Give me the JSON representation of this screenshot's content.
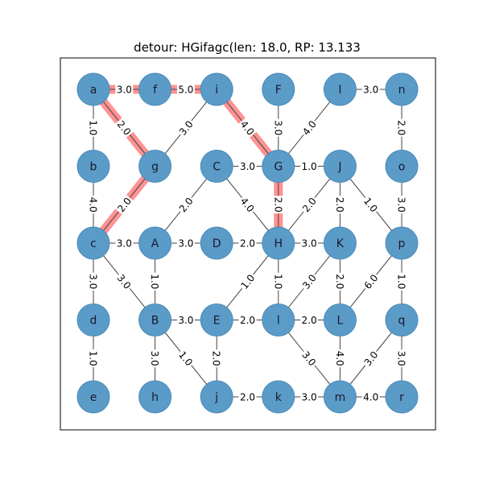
{
  "title": "detour: HGifagc(len: 18.0, RP: 13.133",
  "colors": {
    "node_fill": "#5b9bc8",
    "node_stroke": "#4a8ab8",
    "edge": "#444444",
    "path_highlight": "#ff8080",
    "label_bg": "#ffffff",
    "frame": "#000000"
  },
  "nodes": [
    {
      "id": "a",
      "col": 0,
      "row": 0
    },
    {
      "id": "f",
      "col": 1,
      "row": 0
    },
    {
      "id": "i",
      "col": 2,
      "row": 0
    },
    {
      "id": "F",
      "col": 3,
      "row": 0
    },
    {
      "id": "I",
      "col": 4,
      "row": 0
    },
    {
      "id": "n",
      "col": 5,
      "row": 0
    },
    {
      "id": "b",
      "col": 0,
      "row": 1
    },
    {
      "id": "g",
      "col": 1,
      "row": 1
    },
    {
      "id": "C",
      "col": 2,
      "row": 1
    },
    {
      "id": "G",
      "col": 3,
      "row": 1
    },
    {
      "id": "J",
      "col": 4,
      "row": 1
    },
    {
      "id": "o",
      "col": 5,
      "row": 1
    },
    {
      "id": "c",
      "col": 0,
      "row": 2
    },
    {
      "id": "A",
      "col": 1,
      "row": 2
    },
    {
      "id": "D",
      "col": 2,
      "row": 2
    },
    {
      "id": "H",
      "col": 3,
      "row": 2
    },
    {
      "id": "K",
      "col": 4,
      "row": 2
    },
    {
      "id": "p",
      "col": 5,
      "row": 2
    },
    {
      "id": "d",
      "col": 0,
      "row": 3
    },
    {
      "id": "B",
      "col": 1,
      "row": 3
    },
    {
      "id": "E",
      "col": 2,
      "row": 3
    },
    {
      "id": "l",
      "col": 3,
      "row": 3
    },
    {
      "id": "L",
      "col": 4,
      "row": 3
    },
    {
      "id": "q",
      "col": 5,
      "row": 3
    },
    {
      "id": "e",
      "col": 0,
      "row": 4
    },
    {
      "id": "h",
      "col": 1,
      "row": 4
    },
    {
      "id": "j",
      "col": 2,
      "row": 4
    },
    {
      "id": "k",
      "col": 3,
      "row": 4
    },
    {
      "id": "m",
      "col": 4,
      "row": 4
    },
    {
      "id": "r",
      "col": 5,
      "row": 4
    }
  ],
  "edges": [
    {
      "from": "a",
      "to": "f",
      "weight": "3.0"
    },
    {
      "from": "f",
      "to": "i",
      "weight": "5.0"
    },
    {
      "from": "I",
      "to": "n",
      "weight": "3.0"
    },
    {
      "from": "a",
      "to": "b",
      "weight": "1.0"
    },
    {
      "from": "a",
      "to": "g",
      "weight": "2.0"
    },
    {
      "from": "i",
      "to": "g",
      "weight": "3.0"
    },
    {
      "from": "i",
      "to": "G",
      "weight": "4.0"
    },
    {
      "from": "F",
      "to": "G",
      "weight": "3.0"
    },
    {
      "from": "I",
      "to": "G",
      "weight": "4.0"
    },
    {
      "from": "n",
      "to": "o",
      "weight": "2.0"
    },
    {
      "from": "C",
      "to": "G",
      "weight": "3.0"
    },
    {
      "from": "G",
      "to": "J",
      "weight": "1.0"
    },
    {
      "from": "b",
      "to": "c",
      "weight": "4.0"
    },
    {
      "from": "g",
      "to": "c",
      "weight": "2.0"
    },
    {
      "from": "C",
      "to": "A",
      "weight": "2.0"
    },
    {
      "from": "C",
      "to": "H",
      "weight": "4.0"
    },
    {
      "from": "G",
      "to": "H",
      "weight": "2.0"
    },
    {
      "from": "J",
      "to": "H",
      "weight": "2.0"
    },
    {
      "from": "J",
      "to": "K",
      "weight": "2.0"
    },
    {
      "from": "J",
      "to": "p",
      "weight": "1.0"
    },
    {
      "from": "o",
      "to": "p",
      "weight": "3.0"
    },
    {
      "from": "c",
      "to": "A",
      "weight": "3.0"
    },
    {
      "from": "A",
      "to": "D",
      "weight": "3.0"
    },
    {
      "from": "D",
      "to": "H",
      "weight": "2.0"
    },
    {
      "from": "H",
      "to": "K",
      "weight": "3.0"
    },
    {
      "from": "c",
      "to": "d",
      "weight": "3.0"
    },
    {
      "from": "c",
      "to": "B",
      "weight": "3.0"
    },
    {
      "from": "A",
      "to": "B",
      "weight": "1.0"
    },
    {
      "from": "H",
      "to": "E",
      "weight": "1.0"
    },
    {
      "from": "H",
      "to": "l",
      "weight": "1.0"
    },
    {
      "from": "K",
      "to": "l",
      "weight": "3.0"
    },
    {
      "from": "K",
      "to": "L",
      "weight": "2.0"
    },
    {
      "from": "p",
      "to": "L",
      "weight": "6.0"
    },
    {
      "from": "p",
      "to": "q",
      "weight": "1.0"
    },
    {
      "from": "B",
      "to": "E",
      "weight": "3.0"
    },
    {
      "from": "E",
      "to": "l",
      "weight": "2.0"
    },
    {
      "from": "l",
      "to": "L",
      "weight": "2.0"
    },
    {
      "from": "d",
      "to": "e",
      "weight": "1.0"
    },
    {
      "from": "B",
      "to": "h",
      "weight": "3.0"
    },
    {
      "from": "B",
      "to": "j",
      "weight": "1.0"
    },
    {
      "from": "E",
      "to": "j",
      "weight": "2.0"
    },
    {
      "from": "l",
      "to": "m",
      "weight": "3.0"
    },
    {
      "from": "L",
      "to": "m",
      "weight": "4.0"
    },
    {
      "from": "q",
      "to": "m",
      "weight": "3.0"
    },
    {
      "from": "q",
      "to": "r",
      "weight": "3.0"
    },
    {
      "from": "j",
      "to": "k",
      "weight": "2.0"
    },
    {
      "from": "k",
      "to": "m",
      "weight": "3.0"
    },
    {
      "from": "m",
      "to": "r",
      "weight": "4.0"
    }
  ],
  "highlight_path": [
    "H",
    "G",
    "i",
    "f",
    "a",
    "g",
    "c"
  ]
}
